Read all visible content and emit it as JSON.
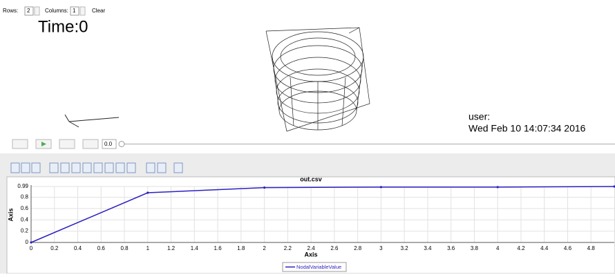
{
  "controls": {
    "rows_label": "Rows:",
    "rows_value": "2",
    "columns_label": "Columns:",
    "columns_value": "1",
    "clear": "Clear"
  },
  "viewer": {
    "time": "Time:0",
    "user": "user:",
    "date": "Wed Feb 10 14:07:34 2016"
  },
  "playback": {
    "time_value": "0.0"
  },
  "chart_data": {
    "type": "line",
    "title": "out.csv",
    "x_label": "Axis",
    "y_label": "Axis",
    "x": [
      0,
      1,
      2,
      3,
      4,
      5
    ],
    "series": [
      {
        "name": "NodalVariableValue",
        "color": "#2b1fc2",
        "values": [
          0,
          0.88,
          0.97,
          0.98,
          0.98,
          0.99
        ]
      }
    ],
    "xlim": [
      0,
      5
    ],
    "ylim": [
      0,
      0.99
    ],
    "xticks": [
      0,
      0.2,
      0.4,
      0.6,
      0.8,
      1,
      1.2,
      1.4,
      1.6,
      1.8,
      2,
      2.2,
      2.4,
      2.6,
      2.8,
      3,
      3.2,
      3.4,
      3.6,
      3.8,
      4,
      4.2,
      4.4,
      4.6,
      4.8
    ],
    "yticks": [
      0,
      0.2,
      0.4,
      0.6,
      0.8,
      0.99
    ],
    "grid": true
  }
}
